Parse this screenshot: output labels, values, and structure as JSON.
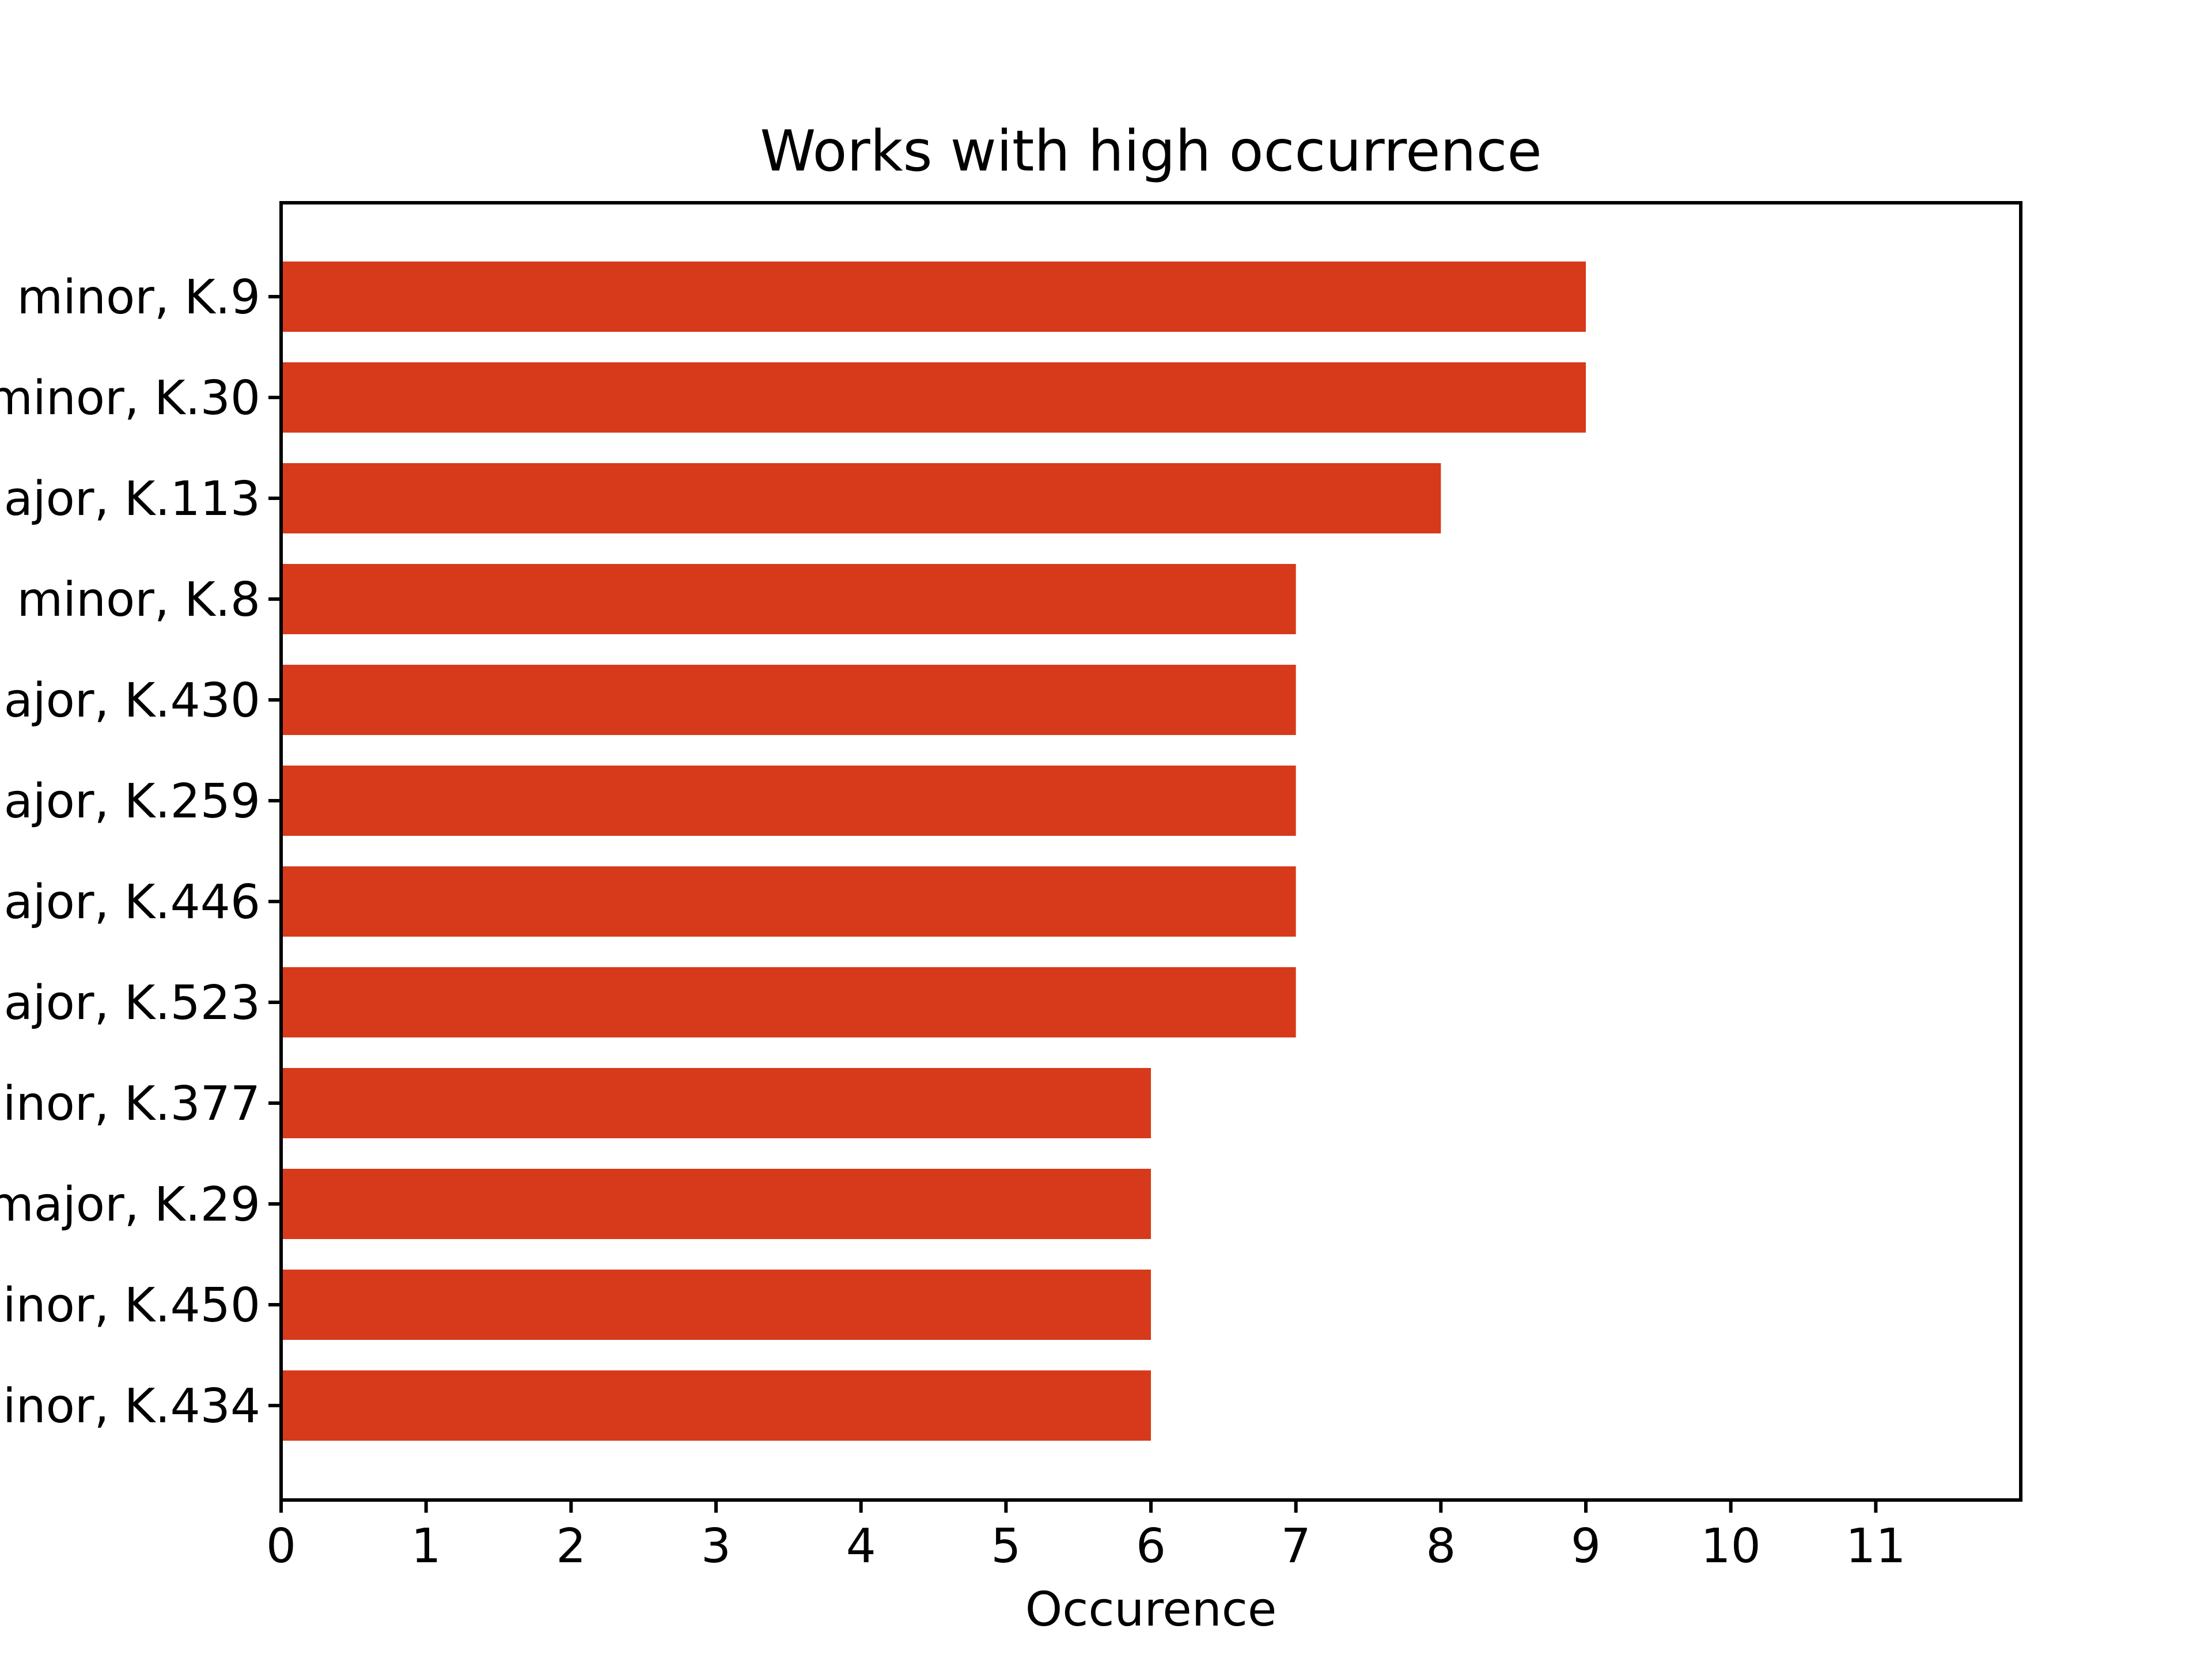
{
  "chart_data": {
    "type": "bar",
    "orientation": "horizontal",
    "title": "Works with high occurrence",
    "xlabel": "Occurence",
    "ylabel": "",
    "xlim": [
      0,
      12
    ],
    "xticks": [
      "0",
      "1",
      "2",
      "3",
      "4",
      "5",
      "6",
      "7",
      "8",
      "9",
      "10",
      "11"
    ],
    "grid": false,
    "bar_color": "#d63a1b",
    "categories": [
      "minor, K.9",
      "minor, K.30",
      "ajor, K.113",
      "minor, K.8",
      "ajor, K.430",
      "ajor, K.259",
      "ajor, K.446",
      "ajor, K.523",
      "inor, K.377",
      "major, K.29",
      "inor, K.450",
      "inor, K.434"
    ],
    "values": [
      9,
      9,
      8,
      7,
      7,
      7,
      7,
      7,
      6,
      6,
      6,
      6
    ]
  }
}
